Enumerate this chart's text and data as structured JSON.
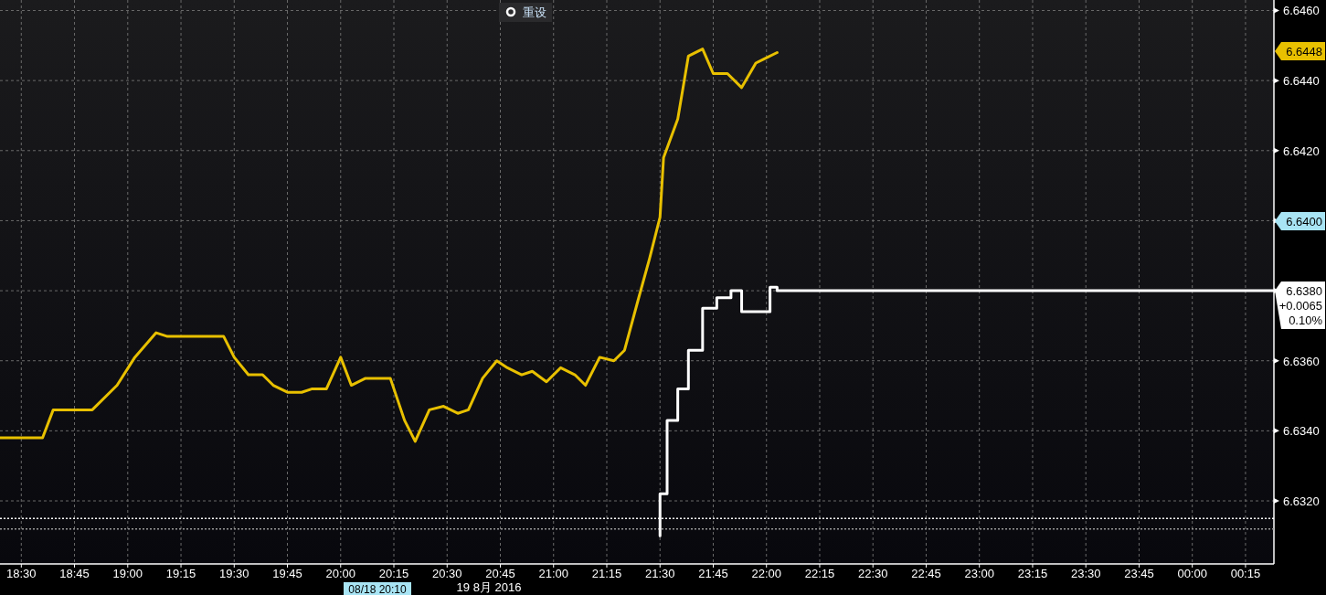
{
  "chart_data": {
    "type": "line",
    "xlim": [
      "2016-08-18T18:24",
      "2016-08-19T00:23"
    ],
    "ylim": [
      6.6302,
      6.6463
    ],
    "xticks": [
      {
        "value": "2016-08-18T18:30",
        "label": "18:30"
      },
      {
        "value": "2016-08-18T18:45",
        "label": "18:45"
      },
      {
        "value": "2016-08-18T19:00",
        "label": "19:00"
      },
      {
        "value": "2016-08-18T19:15",
        "label": "19:15"
      },
      {
        "value": "2016-08-18T19:30",
        "label": "19:30"
      },
      {
        "value": "2016-08-18T19:45",
        "label": "19:45"
      },
      {
        "value": "2016-08-18T20:00",
        "label": "20:00"
      },
      {
        "value": "2016-08-18T20:15",
        "label": "20:15"
      },
      {
        "value": "2016-08-18T20:30",
        "label": "20:30"
      },
      {
        "value": "2016-08-18T20:45",
        "label": "20:45"
      },
      {
        "value": "2016-08-18T21:00",
        "label": "21:00"
      },
      {
        "value": "2016-08-18T21:15",
        "label": "21:15"
      },
      {
        "value": "2016-08-18T21:30",
        "label": "21:30"
      },
      {
        "value": "2016-08-18T21:45",
        "label": "21:45"
      },
      {
        "value": "2016-08-18T22:00",
        "label": "22:00"
      },
      {
        "value": "2016-08-18T22:15",
        "label": "22:15"
      },
      {
        "value": "2016-08-18T22:30",
        "label": "22:30"
      },
      {
        "value": "2016-08-18T22:45",
        "label": "22:45"
      },
      {
        "value": "2016-08-18T23:00",
        "label": "23:00"
      },
      {
        "value": "2016-08-18T23:15",
        "label": "23:15"
      },
      {
        "value": "2016-08-18T23:30",
        "label": "23:30"
      },
      {
        "value": "2016-08-18T23:45",
        "label": "23:45"
      },
      {
        "value": "2016-08-19T00:00",
        "label": "00:00"
      },
      {
        "value": "2016-08-19T00:15",
        "label": "00:15"
      }
    ],
    "yticks": [
      {
        "value": 6.632,
        "label": "6.6320"
      },
      {
        "value": 6.634,
        "label": "6.6340"
      },
      {
        "value": 6.636,
        "label": "6.6360"
      },
      {
        "value": 6.638,
        "label": null
      },
      {
        "value": 6.64,
        "label": null
      },
      {
        "value": 6.642,
        "label": "6.6420"
      },
      {
        "value": 6.644,
        "label": "6.6440"
      },
      {
        "value": 6.646,
        "label": "6.6460"
      }
    ],
    "grid": true,
    "series": [
      {
        "color": "#e8c000",
        "x": [
          "2016-08-18T18:24",
          "2016-08-18T18:30",
          "2016-08-18T18:33",
          "2016-08-18T18:36",
          "2016-08-18T18:39",
          "2016-08-18T18:45",
          "2016-08-18T18:50",
          "2016-08-18T18:57",
          "2016-08-18T19:02",
          "2016-08-18T19:08",
          "2016-08-18T19:11",
          "2016-08-18T19:18",
          "2016-08-18T19:25",
          "2016-08-18T19:27",
          "2016-08-18T19:30",
          "2016-08-18T19:34",
          "2016-08-18T19:38",
          "2016-08-18T19:41",
          "2016-08-18T19:45",
          "2016-08-18T19:49",
          "2016-08-18T19:52",
          "2016-08-18T19:56",
          "2016-08-18T20:00",
          "2016-08-18T20:03",
          "2016-08-18T20:07",
          "2016-08-18T20:10",
          "2016-08-18T20:14",
          "2016-08-18T20:18",
          "2016-08-18T20:21",
          "2016-08-18T20:25",
          "2016-08-18T20:29",
          "2016-08-18T20:33",
          "2016-08-18T20:36",
          "2016-08-18T20:40",
          "2016-08-18T20:44",
          "2016-08-18T20:47",
          "2016-08-18T20:51",
          "2016-08-18T20:54",
          "2016-08-18T20:58",
          "2016-08-18T21:02",
          "2016-08-18T21:06",
          "2016-08-18T21:09",
          "2016-08-18T21:13",
          "2016-08-18T21:17",
          "2016-08-18T21:20",
          "2016-08-18T21:24",
          "2016-08-18T21:27",
          "2016-08-18T21:30",
          "2016-08-18T21:31",
          "2016-08-18T21:35",
          "2016-08-18T21:38",
          "2016-08-18T21:42",
          "2016-08-18T21:45",
          "2016-08-18T21:49",
          "2016-08-18T21:53",
          "2016-08-18T21:57",
          "2016-08-18T21:59",
          "2016-08-18T22:03"
        ],
        "values": [
          6.6338,
          6.6338,
          6.6338,
          6.6338,
          6.6346,
          6.6346,
          6.6346,
          6.6353,
          6.6361,
          6.6368,
          6.6367,
          6.6367,
          6.6367,
          6.6367,
          6.6361,
          6.6356,
          6.6356,
          6.6353,
          6.6351,
          6.6351,
          6.6352,
          6.6352,
          6.6361,
          6.6353,
          6.6355,
          6.6355,
          6.6355,
          6.6343,
          6.6337,
          6.6346,
          6.6347,
          6.6345,
          6.6346,
          6.6355,
          6.636,
          6.6358,
          6.6356,
          6.6357,
          6.6354,
          6.6358,
          6.6356,
          6.6353,
          6.6361,
          6.636,
          6.6363,
          6.6378,
          6.6389,
          6.6401,
          6.6418,
          6.6429,
          6.6447,
          6.6449,
          6.6442,
          6.6442,
          6.6438,
          6.6445,
          6.6446,
          6.6448
        ]
      },
      {
        "type": "step",
        "color": "#ffffff",
        "x": [
          "2016-08-18T21:30",
          "2016-08-18T21:30",
          "2016-08-18T21:32",
          "2016-08-18T21:35",
          "2016-08-18T21:38",
          "2016-08-18T21:42",
          "2016-08-18T21:46",
          "2016-08-18T21:50",
          "2016-08-18T21:53",
          "2016-08-18T22:01",
          "2016-08-18T22:03",
          "2016-08-19T00:23"
        ],
        "values": [
          6.631,
          6.6322,
          6.6343,
          6.6352,
          6.6363,
          6.6375,
          6.6378,
          6.638,
          6.6374,
          6.6381,
          6.638,
          6.638
        ]
      }
    ],
    "ref_lines": [
      {
        "axis": "y",
        "value": 6.6315,
        "color": "#ffffff",
        "line_style": "dotted"
      },
      {
        "axis": "y",
        "value": 6.6312,
        "color": "#9a9a9a",
        "line_style": "dotted"
      }
    ],
    "annotations": [
      "6.6448",
      "6.6400",
      "6.6380\n+0.0065\n0.10%",
      "08/18 20:10",
      "19 8月 2016",
      "重设"
    ]
  }
}
